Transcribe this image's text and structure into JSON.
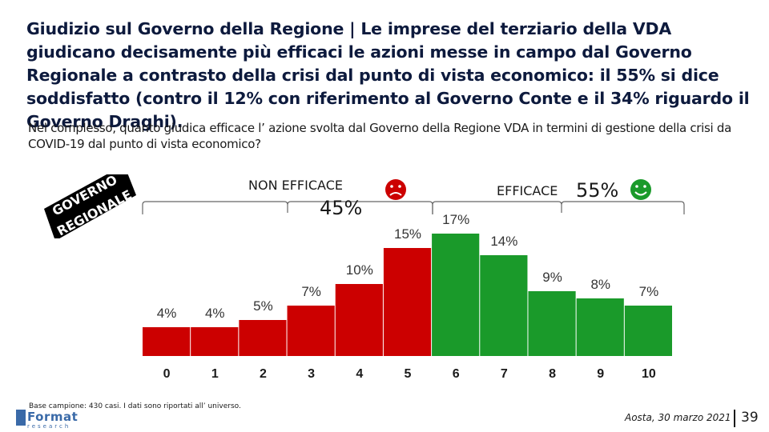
{
  "title": "Giudizio sul Governo della Regione | Le imprese del terziario della VDA giudicano decisamente più efficaci le azioni messe in campo dal Governo Regionale a contrasto della crisi dal punto di vista economico: il 55% si dice soddisfatto (contro il 12% con riferimento al Governo Conte e il 34% riguardo il Governo Draghi).",
  "question": "Nel complesso, quanto giudica efficace l’ azione svolta dal Governo della Regione VDA  in termini di gestione della crisi da COVID-19 dal punto di vista economico?",
  "badge": {
    "line1": "GOVERNO",
    "line2": "REGIONALE"
  },
  "groups": {
    "non_efficace": {
      "label": "NON EFFICACE",
      "value": "45%",
      "icon": "sad-face-icon",
      "color": "#cc0000"
    },
    "efficace": {
      "label": "EFFICACE",
      "value": "55%",
      "icon": "happy-face-icon",
      "color": "#1a9a2a"
    }
  },
  "chart_data": {
    "type": "bar",
    "categories": [
      "0",
      "1",
      "2",
      "3",
      "4",
      "5",
      "6",
      "7",
      "8",
      "9",
      "10"
    ],
    "values": [
      4,
      4,
      5,
      7,
      10,
      15,
      17,
      14,
      9,
      8,
      7
    ],
    "labels": [
      "4%",
      "4%",
      "5%",
      "7%",
      "10%",
      "15%",
      "17%",
      "14%",
      "9%",
      "8%",
      "7%"
    ],
    "colors": [
      "#cc0000",
      "#cc0000",
      "#cc0000",
      "#cc0000",
      "#cc0000",
      "#cc0000",
      "#1a9a2a",
      "#1a9a2a",
      "#1a9a2a",
      "#1a9a2a",
      "#1a9a2a"
    ],
    "title": "",
    "xlabel": "",
    "ylabel": "",
    "ylim": [
      0,
      20
    ]
  },
  "footer": {
    "note": "Base campione: 430 casi. I dati sono riportati all’ universo.",
    "logo": "Format",
    "logo_sub": "research",
    "date": "Aosta, 30 marzo 2021",
    "page": "39"
  }
}
